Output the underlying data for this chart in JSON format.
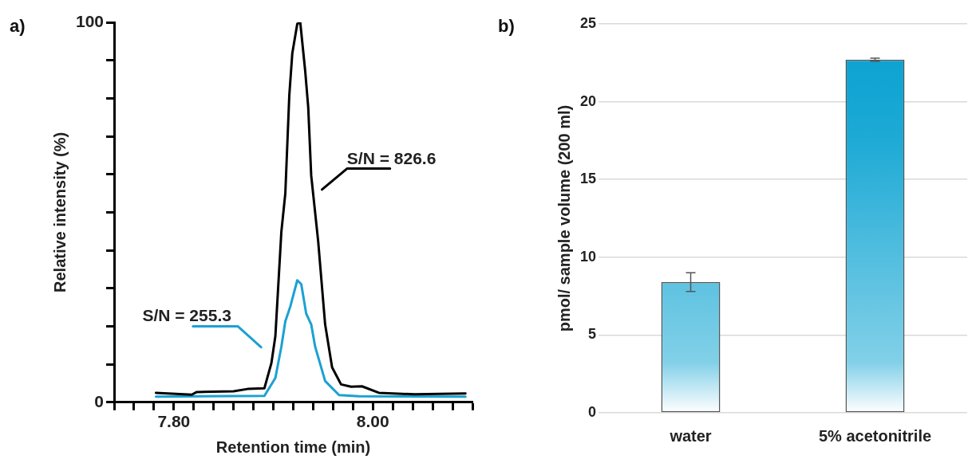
{
  "chart_data": [
    {
      "type": "line",
      "title": "a)",
      "xlabel": "Retention time (min)",
      "ylabel": "Relative intensity (%)",
      "xlim": [
        7.74,
        8.1
      ],
      "xticks": [
        {
          "value": 7.74,
          "label": null
        },
        {
          "value": 7.76,
          "label": null
        },
        {
          "value": 7.78,
          "label": null
        },
        {
          "value": 7.8,
          "label": "7.80"
        },
        {
          "value": 7.82,
          "label": null
        },
        {
          "value": 7.84,
          "label": null
        },
        {
          "value": 7.86,
          "label": null
        },
        {
          "value": 7.88,
          "label": null
        },
        {
          "value": 7.9,
          "label": null
        },
        {
          "value": 7.92,
          "label": null
        },
        {
          "value": 7.94,
          "label": null
        },
        {
          "value": 7.96,
          "label": null
        },
        {
          "value": 7.98,
          "label": null
        },
        {
          "value": 8.0,
          "label": "8.00"
        },
        {
          "value": 8.02,
          "label": null
        },
        {
          "value": 8.04,
          "label": null
        },
        {
          "value": 8.06,
          "label": null
        },
        {
          "value": 8.08,
          "label": null
        },
        {
          "value": 8.1,
          "label": null
        }
      ],
      "ylim": [
        0,
        100
      ],
      "yticks": [
        0,
        {
          "value": 10,
          "label": null
        },
        {
          "value": 20,
          "label": null
        },
        {
          "value": 30,
          "label": null
        },
        {
          "value": 40,
          "label": null
        },
        {
          "value": 50,
          "label": null
        },
        {
          "value": 60,
          "label": null
        },
        {
          "value": 70,
          "label": null
        },
        {
          "value": 80,
          "label": null
        },
        {
          "value": 90,
          "label": null
        },
        100
      ],
      "grid": false,
      "legend": false,
      "marker": "none",
      "line_style": "solid",
      "series": [
        {
          "color": "#000000",
          "x": [
            7.782,
            7.818,
            7.823,
            7.86,
            7.874,
            7.891,
            7.898,
            7.902,
            7.908,
            7.912,
            7.916,
            7.919,
            7.924,
            7.927,
            7.932,
            7.935,
            7.938,
            7.945,
            7.952,
            7.959,
            7.968,
            7.978,
            7.989,
            8.006,
            8.042,
            8.093
          ],
          "values": [
            2.5,
            2.0,
            2.7,
            2.9,
            3.5,
            3.7,
            10.3,
            17.4,
            44.8,
            55.0,
            80.8,
            91.8,
            99.6,
            100,
            87.1,
            77.7,
            59.7,
            42.4,
            20.5,
            9.2,
            4.7,
            4.1,
            4.2,
            2.5,
            2.1,
            2.3
          ]
        },
        {
          "color": "#1ba1d2",
          "x": [
            7.782,
            7.891,
            7.902,
            7.908,
            7.912,
            7.917,
            7.924,
            7.928,
            7.933,
            7.938,
            7.942,
            7.952,
            7.966,
            7.986,
            8.093
          ],
          "values": [
            1.5,
            1.7,
            6.4,
            14.6,
            21.3,
            25.2,
            32.1,
            31.1,
            23.3,
            20.5,
            14.6,
            5.6,
            1.9,
            1.6,
            1.5
          ]
        }
      ],
      "annotations": [
        "S/N = 826.6",
        "S/N = 255.3"
      ]
    },
    {
      "type": "bar",
      "title": "b)",
      "ylabel": "pmol/ sample volume (200 ml)",
      "categories": [
        "water",
        "5% acetonitrile"
      ],
      "values": [
        8.4,
        22.7
      ],
      "errors": [
        0.6,
        0.1
      ],
      "color": "#05a0d0",
      "ylim": [
        0,
        25
      ],
      "yticks": [
        0,
        5,
        10,
        15,
        20,
        25
      ],
      "grid": "y",
      "legend": false
    }
  ]
}
